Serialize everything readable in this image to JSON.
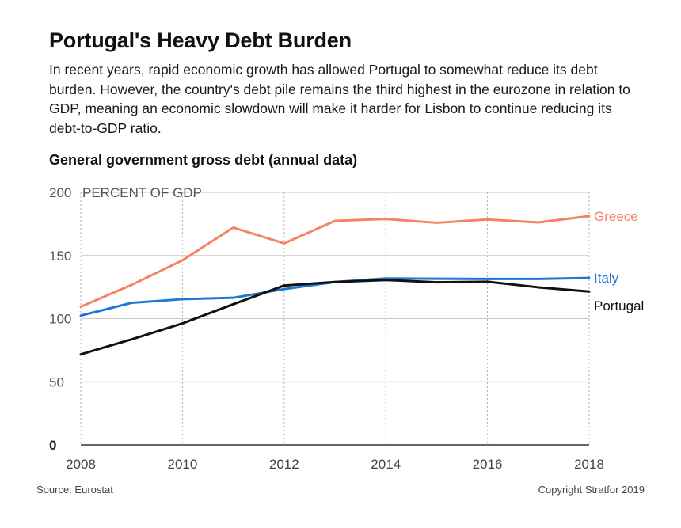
{
  "header": {
    "title": "Portugal's Heavy Debt Burden",
    "description": "In recent years, rapid economic growth has allowed Portugal to somewhat reduce its debt burden. However, the country's debt pile remains the third highest in the eurozone in relation to GDP, meaning an economic slowdown will make it harder for Lisbon to continue reducing its debt-to-GDP ratio."
  },
  "footer": {
    "source": "Source: Eurostat",
    "copyright": "Copyright Stratfor 2019"
  },
  "chart_data": {
    "type": "line",
    "title": "General government gross debt (annual data)",
    "ylabel": "PERCENT OF GDP",
    "xlabel": "",
    "x": [
      2008,
      2009,
      2010,
      2011,
      2012,
      2013,
      2014,
      2015,
      2016,
      2017,
      2018
    ],
    "xticks": [
      "2008",
      "2010",
      "2012",
      "2014",
      "2016",
      "2018"
    ],
    "yticks": [
      "0",
      "50",
      "100",
      "150",
      "200"
    ],
    "xlim": [
      2008,
      2018
    ],
    "ylim": [
      0,
      200
    ],
    "grid": "dotted vertical lines at tick years; horizontal lines at y ticks",
    "series": [
      {
        "name": "Greece",
        "color": "#f4845f",
        "values": [
          109.4,
          126.7,
          146.2,
          172.1,
          159.6,
          177.4,
          178.9,
          175.9,
          178.5,
          176.2,
          181.2
        ]
      },
      {
        "name": "Italy",
        "color": "#1f77d4",
        "values": [
          102.4,
          112.5,
          115.4,
          116.5,
          123.4,
          129.0,
          131.8,
          131.6,
          131.4,
          131.4,
          132.2
        ]
      },
      {
        "name": "Portugal",
        "color": "#111111",
        "values": [
          71.7,
          83.6,
          96.2,
          111.4,
          126.2,
          129.0,
          130.6,
          128.8,
          129.2,
          124.8,
          121.5
        ]
      }
    ]
  }
}
